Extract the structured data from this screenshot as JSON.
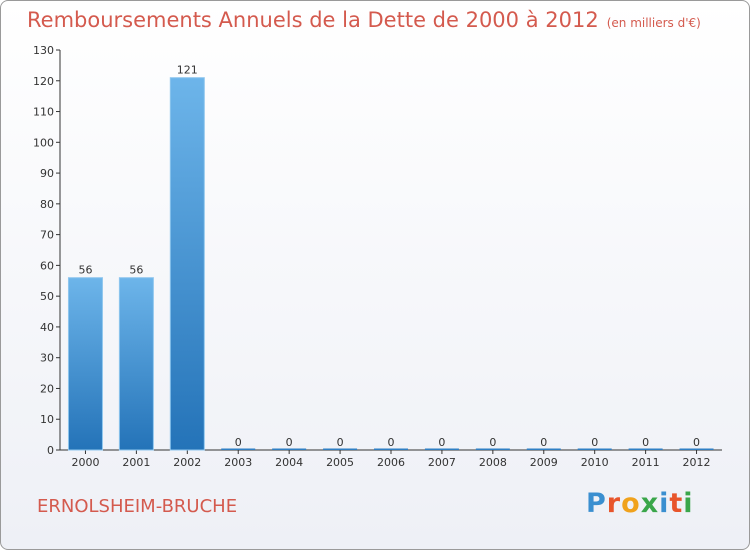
{
  "title": "Remboursements Annuels de la Dette de 2000 à 2012",
  "subtitle": "(en milliers d'€)",
  "commune": "ERNOLSHEIM-BRUCHE",
  "logo": {
    "letters": [
      "P",
      "r",
      "o",
      "x",
      "i",
      "t",
      "i"
    ],
    "colors": [
      "#3a8fd0",
      "#e8552b",
      "#f0a21c",
      "#3aa64a",
      "#3a8fd0",
      "#e8552b",
      "#3aa64a"
    ]
  },
  "colors": {
    "bar": "#2f7fc4",
    "bar_light": "#6db5ea",
    "axis": "#333333",
    "text": "#333333",
    "accent": "#d45a4e"
  },
  "chart_data": {
    "type": "bar",
    "categories": [
      "2000",
      "2001",
      "2002",
      "2003",
      "2004",
      "2005",
      "2006",
      "2007",
      "2008",
      "2009",
      "2010",
      "2011",
      "2012"
    ],
    "values": [
      56,
      56,
      121,
      0,
      0,
      0,
      0,
      0,
      0,
      0,
      0,
      0,
      0
    ],
    "title": "Remboursements Annuels de la Dette de 2000 à 2012",
    "xlabel": "",
    "ylabel": "",
    "ylim": [
      0,
      130
    ],
    "yticks": [
      0,
      10,
      20,
      30,
      40,
      50,
      60,
      70,
      80,
      90,
      100,
      110,
      120,
      130
    ]
  }
}
